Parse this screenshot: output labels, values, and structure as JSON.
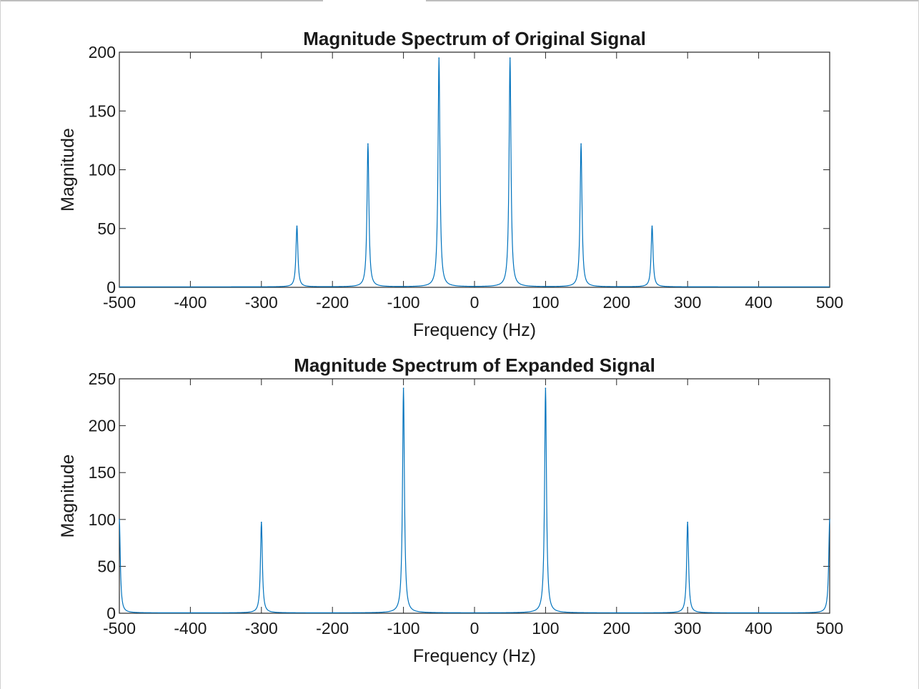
{
  "chart_data": [
    {
      "type": "line",
      "title": "Magnitude Spectrum of Original Signal",
      "xlabel": "Frequency (Hz)",
      "ylabel": "Magnitude",
      "xlim": [
        -500,
        500
      ],
      "ylim": [
        0,
        200
      ],
      "xticks": [
        -500,
        -400,
        -300,
        -200,
        -100,
        0,
        100,
        200,
        300,
        400,
        500
      ],
      "yticks": [
        0,
        50,
        100,
        150,
        200
      ],
      "grid": false,
      "color": "#0072BD",
      "peaks": [
        {
          "f": -250,
          "mag": 52
        },
        {
          "f": -150,
          "mag": 122
        },
        {
          "f": -50,
          "mag": 195
        },
        {
          "f": 50,
          "mag": 195
        },
        {
          "f": 150,
          "mag": 122
        },
        {
          "f": 250,
          "mag": 52
        }
      ]
    },
    {
      "type": "line",
      "title": "Magnitude Spectrum of Expanded Signal",
      "xlabel": "Frequency (Hz)",
      "ylabel": "Magnitude",
      "xlim": [
        -500,
        500
      ],
      "ylim": [
        0,
        250
      ],
      "xticks": [
        -500,
        -400,
        -300,
        -200,
        -100,
        0,
        100,
        200,
        300,
        400,
        500
      ],
      "yticks": [
        0,
        50,
        100,
        150,
        200,
        250
      ],
      "grid": false,
      "color": "#0072BD",
      "peaks": [
        {
          "f": -500,
          "mag": 100
        },
        {
          "f": -300,
          "mag": 97
        },
        {
          "f": -100,
          "mag": 240
        },
        {
          "f": 100,
          "mag": 240
        },
        {
          "f": 300,
          "mag": 97
        },
        {
          "f": 500,
          "mag": 100
        }
      ]
    }
  ]
}
